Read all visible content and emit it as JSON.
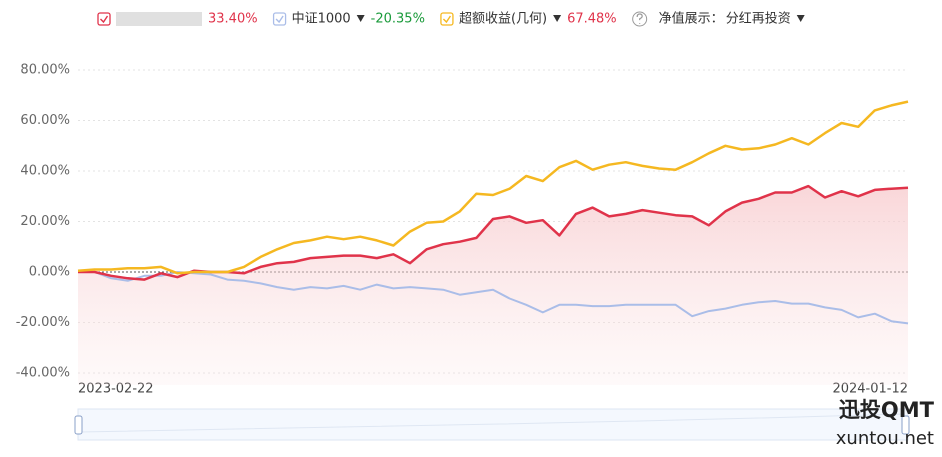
{
  "chart_data": {
    "type": "line",
    "categories": [
      "2023-02-22",
      null,
      null,
      null,
      null,
      null,
      null,
      null,
      null,
      null,
      null,
      null,
      null,
      null,
      null,
      null,
      null,
      null,
      null,
      null,
      null,
      null,
      null,
      null,
      null,
      null,
      null,
      null,
      null,
      null,
      null,
      null,
      null,
      null,
      null,
      null,
      null,
      null,
      null,
      null,
      null,
      null,
      null,
      null,
      null,
      null,
      null,
      null,
      null,
      null,
      "2024-01-12"
    ],
    "series": [
      {
        "color": "#e0334a",
        "return_label": "33.40%",
        "values": [
          0,
          0,
          -1.5,
          -2.5,
          -3,
          -0.5,
          -2,
          0.5,
          0,
          0,
          -0.5,
          2,
          3.5,
          4,
          5.5,
          6,
          6.5,
          6.5,
          5.5,
          7,
          3.5,
          9,
          11,
          12,
          13.5,
          21,
          22,
          19.5,
          20.5,
          14.5,
          23,
          25.5,
          22,
          23,
          24.5,
          23.5,
          22.5,
          22,
          18.5,
          24,
          27.5,
          29,
          31.5,
          31.5,
          34,
          29.5,
          32,
          30,
          32.5,
          33,
          33.4
        ]
      },
      {
        "name": "中证1000",
        "color": "#aabde8",
        "return_label": "-20.35%",
        "values": [
          0,
          0,
          -2.5,
          -3.5,
          -1.5,
          -1.5,
          0,
          -0.5,
          -1,
          -3,
          -3.5,
          -4.5,
          -6,
          -7,
          -6,
          -6.5,
          -5.5,
          -7,
          -5,
          -6.5,
          -6,
          -6.5,
          -7,
          -9,
          -8,
          -7,
          -10.5,
          -13,
          -16,
          -13,
          -13,
          -13.5,
          -13.5,
          -13,
          -13,
          -13,
          -13,
          -17.5,
          -15.5,
          -14.5,
          -13,
          -12,
          -11.5,
          -12.5,
          -12.5,
          -14,
          -15,
          -18,
          -16.5,
          -19.5,
          -20.35
        ]
      },
      {
        "name": "超额收益(几何)",
        "color": "#f5b821",
        "return_label": "67.48%",
        "values": [
          0.5,
          1,
          1,
          1.5,
          1.5,
          2,
          -0.5,
          0,
          0,
          0,
          2,
          6,
          9,
          11.5,
          12.5,
          14,
          13,
          14,
          12.5,
          10.5,
          16,
          19.5,
          20,
          24,
          31,
          30.5,
          33,
          38,
          36,
          41.5,
          44,
          40.5,
          42.5,
          43.5,
          42,
          41,
          40.5,
          43.5,
          47,
          50,
          48.5,
          49,
          50.5,
          53,
          50.5,
          55,
          59,
          57.5,
          64,
          66,
          67.48
        ]
      }
    ],
    "ylim": [
      -40,
      80
    ],
    "yticks": [
      {
        "value": -40,
        "label": "-40.00%"
      },
      {
        "value": -20,
        "label": "-20.00%"
      },
      {
        "value": 0,
        "label": "0.00%"
      },
      {
        "value": 20,
        "label": "20.00%"
      },
      {
        "value": 40,
        "label": "40.00%"
      },
      {
        "value": 60,
        "label": "60.00%"
      },
      {
        "value": 80,
        "label": "80.00%"
      }
    ],
    "grid": true,
    "area_under_first_series": true,
    "nav_display_label": "净值展示：",
    "nav_display_option": "分红再投资",
    "watermark": [
      "迅投QMT",
      "xuntou.net"
    ]
  }
}
